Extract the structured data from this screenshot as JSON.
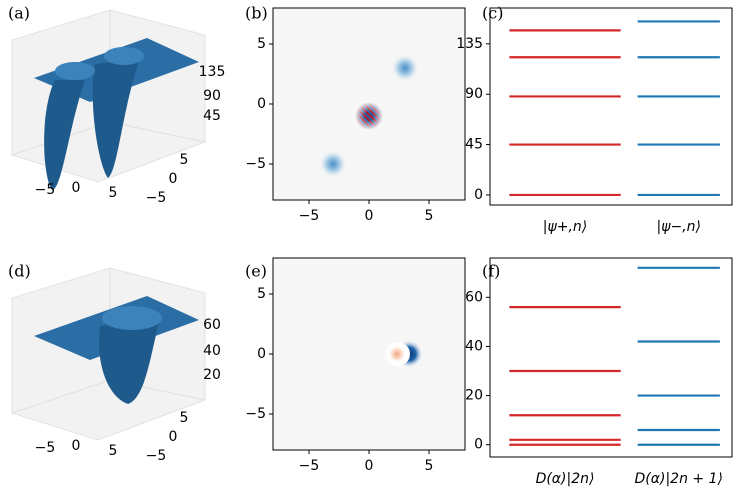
{
  "chart_data": [
    {
      "type": "surface3d",
      "panel": "(a)",
      "xticks": [
        {
          "value": -5,
          "label": "−5"
        },
        0,
        5
      ],
      "yticks": [
        {
          "value": -5,
          "label": "−5"
        },
        0,
        5
      ],
      "zticks": [
        45,
        90,
        135
      ]
    },
    {
      "type": "heatmap",
      "panel": "(b)",
      "xlim": [
        -8,
        8
      ],
      "ylim": [
        -8,
        8
      ],
      "xticks": [
        {
          "value": -5,
          "label": "−5"
        },
        0,
        5
      ],
      "yticks": [
        {
          "value": -5,
          "label": "−5"
        },
        0,
        5
      ]
    },
    {
      "type": "levels",
      "panel": "(c)",
      "ylim": [
        -9,
        167
      ],
      "yticks": [
        0,
        45,
        90,
        135
      ],
      "series": [
        {
          "name": "|ψ+,n⟩",
          "color": "#d62728",
          "values": [
            0,
            45,
            88,
            123,
            147
          ]
        },
        {
          "name": "|ψ−,n⟩",
          "color": "#1f77b4",
          "values": [
            0,
            45,
            88,
            123,
            155
          ]
        }
      ]
    },
    {
      "type": "surface3d",
      "panel": "(d)",
      "xticks": [
        {
          "value": -5,
          "label": "−5"
        },
        0,
        5
      ],
      "yticks": [
        {
          "value": -5,
          "label": "−5"
        },
        0,
        5
      ],
      "zticks": [
        20,
        40,
        60
      ]
    },
    {
      "type": "heatmap",
      "panel": "(e)",
      "xlim": [
        -8,
        8
      ],
      "ylim": [
        -8,
        8
      ],
      "xticks": [
        {
          "value": -5,
          "label": "−5"
        },
        0,
        5
      ],
      "yticks": [
        {
          "value": -5,
          "label": "−5"
        },
        0,
        5
      ]
    },
    {
      "type": "levels",
      "panel": "(f)",
      "ylim": [
        -5,
        76
      ],
      "yticks": [
        0,
        20,
        40,
        60
      ],
      "series": [
        {
          "name": "D(α)|2n⟩",
          "color": "#d62728",
          "values": [
            0,
            2,
            12,
            30,
            56
          ]
        },
        {
          "name": "D(α)|2n + 1⟩",
          "color": "#1f77b4",
          "values": [
            0,
            6,
            20,
            42,
            72
          ]
        }
      ]
    }
  ]
}
